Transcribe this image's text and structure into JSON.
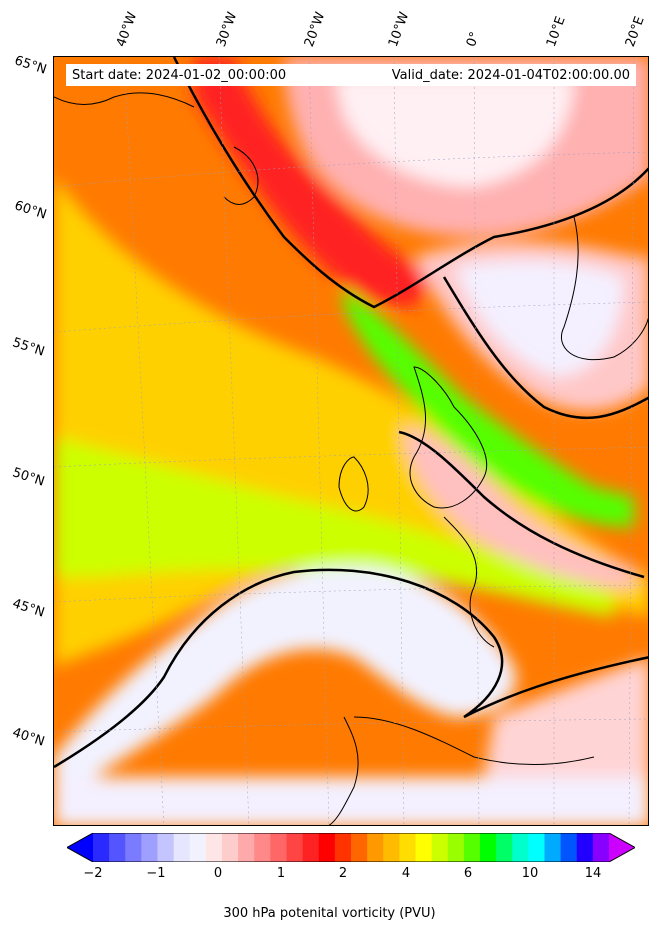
{
  "banner": {
    "start_date": "Start date: 2024-01-02_00:00:00",
    "valid_date": "Valid_date: 2024-01-04T02:00:00.00"
  },
  "longitude_labels": [
    "40°W",
    "30°W",
    "20°W",
    "10°W",
    "0°",
    "10°E",
    "20°E"
  ],
  "latitude_labels": [
    "65°N",
    "60°N",
    "55°N",
    "50°N",
    "45°N",
    "40°N"
  ],
  "colorbar": {
    "label": "300 hPa potenital vorticity (PVU)",
    "tick_labels": [
      "−2",
      "−1",
      "0",
      "1",
      "2",
      "4",
      "6",
      "10",
      "14"
    ],
    "colors": [
      "#0000ff",
      "#2a2aff",
      "#5555ff",
      "#7b7bff",
      "#9f9fff",
      "#c4c4ff",
      "#e6e6ff",
      "#f2f2ff",
      "#ffe6e6",
      "#ffcccc",
      "#ffaaaa",
      "#ff8888",
      "#ff6666",
      "#ff4444",
      "#ff2222",
      "#ff0000",
      "#ff3300",
      "#ff6600",
      "#ff9900",
      "#ffbb00",
      "#ffdd00",
      "#ffff00",
      "#ccff00",
      "#99ff00",
      "#55ff00",
      "#00ff00",
      "#00ff66",
      "#00ffcc",
      "#00ffff",
      "#00aaff",
      "#0055ff",
      "#2200ff",
      "#8800ff",
      "#cc00ff"
    ]
  },
  "map_colors": {
    "low_pv": "#f2f2ff",
    "mid_pv": "#ffb0b0",
    "high_pv": "#ff3030",
    "orange": "#ff7a00",
    "yellow": "#ffe000",
    "green": "#66ff00",
    "contour": "#000000"
  }
}
